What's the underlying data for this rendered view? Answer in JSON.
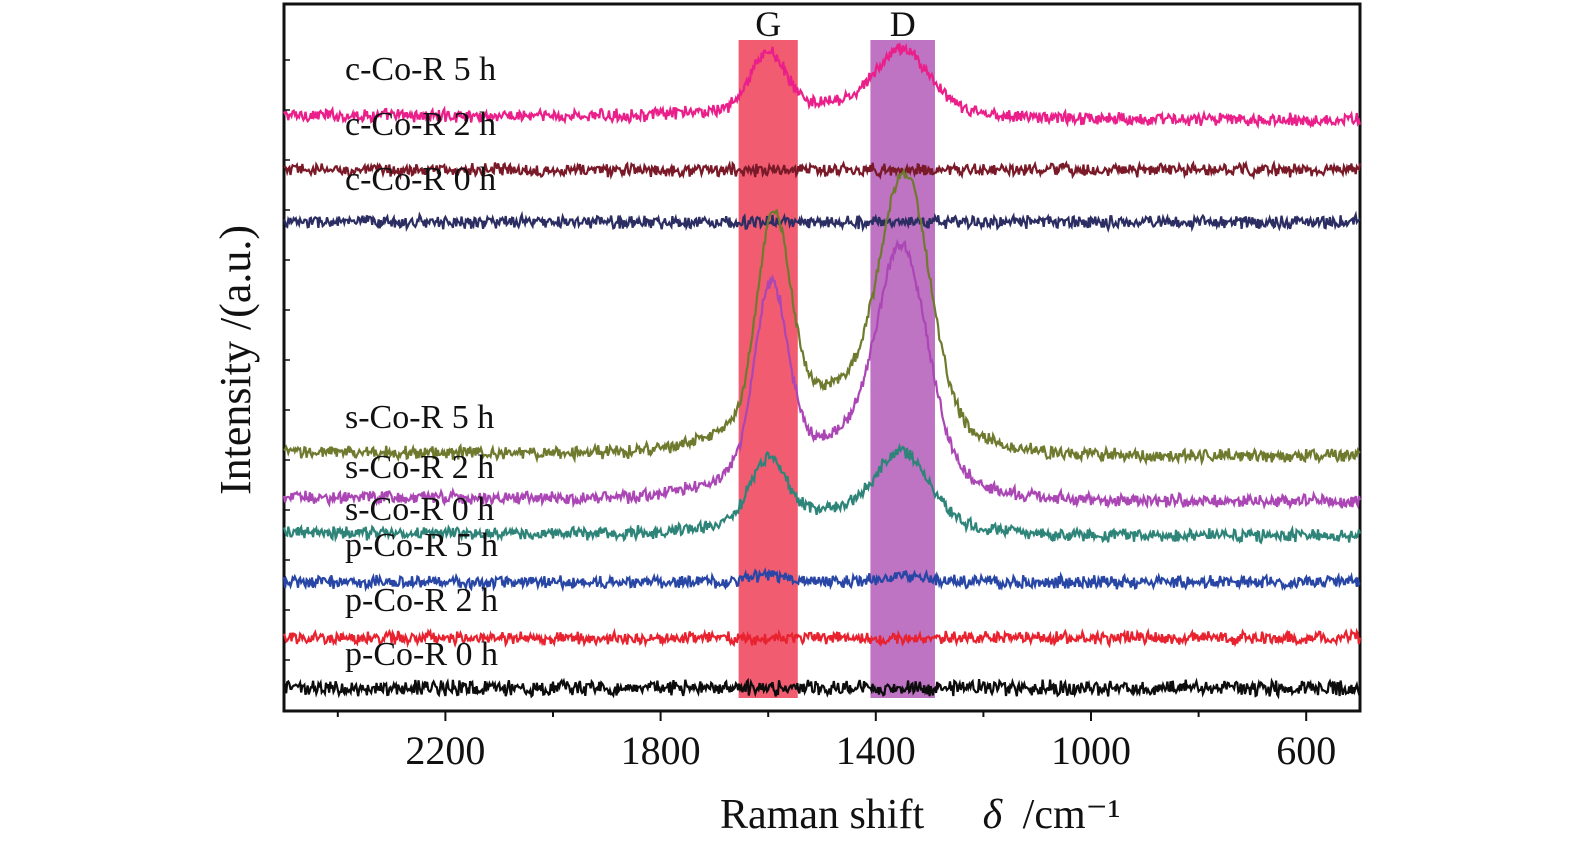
{
  "chart_data": {
    "type": "line",
    "title": "",
    "xlabel": "Raman shift",
    "xlabel_symbol": "δ",
    "xlabel_unit": "/cm⁻¹",
    "ylabel": "Intensity /(a.u.)",
    "x_reversed": true,
    "xlim": [
      2500,
      500
    ],
    "x_ticks": [
      2200,
      1800,
      1400,
      1000,
      600
    ],
    "y_ticks_shown": false,
    "grid": false,
    "bands": [
      {
        "label": "G",
        "center": 1600,
        "from": 1655,
        "to": 1545,
        "color": "#ef4058"
      },
      {
        "label": "D",
        "center": 1350,
        "from": 1410,
        "to": 1290,
        "color": "#b35ab9"
      }
    ],
    "series": [
      {
        "name": "c-Co-R 5 h",
        "color": "#ea1f8a",
        "offset": 585,
        "noise": 5,
        "base_slope": -5,
        "peaks": [
          {
            "x": 1600,
            "h": 55,
            "w": 32
          },
          {
            "x": 1350,
            "h": 58,
            "w": 48
          }
        ],
        "broad": {
          "x": 1470,
          "h": 14,
          "w": 180
        }
      },
      {
        "name": "c-Co-R 2 h",
        "color": "#7a1a28",
        "offset": 530,
        "noise": 5,
        "base_slope": 0,
        "peaks": [],
        "broad": null
      },
      {
        "name": "c-Co-R 0 h",
        "color": "#2c2e63",
        "offset": 478,
        "noise": 5,
        "base_slope": 0,
        "peaks": [],
        "broad": null
      },
      {
        "name": "s-Co-R 5 h",
        "color": "#6f7a2f",
        "offset": 248,
        "noise": 5,
        "base_slope": -4,
        "peaks": [
          {
            "x": 1590,
            "h": 195,
            "w": 30
          },
          {
            "x": 1345,
            "h": 230,
            "w": 45
          }
        ],
        "broad": {
          "x": 1460,
          "h": 70,
          "w": 150
        }
      },
      {
        "name": "s-Co-R 2 h",
        "color": "#ab46b5",
        "offset": 203,
        "noise": 5,
        "base_slope": -4,
        "peaks": [
          {
            "x": 1595,
            "h": 175,
            "w": 30
          },
          {
            "x": 1350,
            "h": 205,
            "w": 45
          }
        ],
        "broad": {
          "x": 1460,
          "h": 65,
          "w": 150
        }
      },
      {
        "name": "s-Co-R 0 h",
        "color": "#2e8478",
        "offset": 167,
        "noise": 5,
        "base_slope": -3,
        "peaks": [
          {
            "x": 1600,
            "h": 60,
            "w": 32
          },
          {
            "x": 1350,
            "h": 65,
            "w": 48
          }
        ],
        "broad": {
          "x": 1470,
          "h": 25,
          "w": 160
        }
      },
      {
        "name": "p-Co-R 5 h",
        "color": "#2846a6",
        "offset": 118,
        "noise": 5,
        "base_slope": 0,
        "peaks": [
          {
            "x": 1600,
            "h": 8,
            "w": 30
          },
          {
            "x": 1350,
            "h": 6,
            "w": 40
          }
        ],
        "broad": null
      },
      {
        "name": "p-Co-R 2 h",
        "color": "#e8222e",
        "offset": 62,
        "noise": 5,
        "base_slope": 0,
        "peaks": [],
        "broad": null
      },
      {
        "name": "p-Co-R 0 h",
        "color": "#0d0d0d",
        "offset": 12,
        "noise": 6,
        "base_slope": 0,
        "peaks": [],
        "broad": null
      }
    ]
  }
}
